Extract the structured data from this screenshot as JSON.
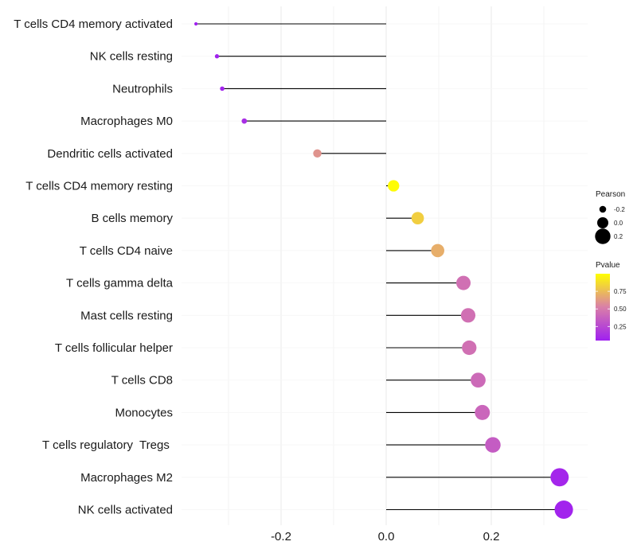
{
  "chart_data": {
    "type": "lollipop",
    "categories": [
      "T cells CD4 memory activated",
      "NK cells resting",
      "Neutrophils",
      "Macrophages M0",
      "Dendritic cells activated",
      "T cells CD4 memory resting",
      "B cells memory",
      "T cells CD4 naive",
      "T cells gamma delta",
      "Mast cells resting",
      "T cells follicular helper",
      "T cells CD8",
      "Monocytes",
      "T cells regulatory  Tregs ",
      "Macrophages M2",
      "NK cells activated"
    ],
    "pearson": [
      -0.362,
      -0.322,
      -0.312,
      -0.27,
      -0.131,
      0.014,
      0.06,
      0.098,
      0.147,
      0.156,
      0.158,
      0.175,
      0.183,
      0.203,
      0.33,
      0.338
    ],
    "pvalue": [
      0.05,
      0.06,
      0.07,
      0.12,
      0.6,
      0.99,
      0.82,
      0.7,
      0.45,
      0.45,
      0.45,
      0.42,
      0.4,
      0.35,
      0.08,
      0.07
    ],
    "xlim": [
      -0.4,
      0.38
    ],
    "xticks": [
      -0.2,
      0.0,
      0.2
    ],
    "xtick_labels": [
      "-0.2",
      "0.0",
      "0.2"
    ],
    "title": "",
    "xlabel": "",
    "ylabel": "",
    "grid": true,
    "legend": {
      "size_title": "Pearson",
      "size_labels": [
        "-0.2",
        "0.0",
        "0.2"
      ],
      "size_values": [
        -0.2,
        0.0,
        0.2
      ],
      "color_title": "Pvalue",
      "color_labels": [
        "0.75",
        "0.50",
        "0.25"
      ],
      "color_values": [
        0.75,
        0.5,
        0.25
      ],
      "color_range": [
        0.05,
        1.0
      ],
      "placement": "right"
    },
    "colors": {
      "low": "#a020f0",
      "mid": "#d97fa8",
      "high": "#ffff00",
      "segment": "#000000",
      "grid": "#ebebeb"
    }
  }
}
